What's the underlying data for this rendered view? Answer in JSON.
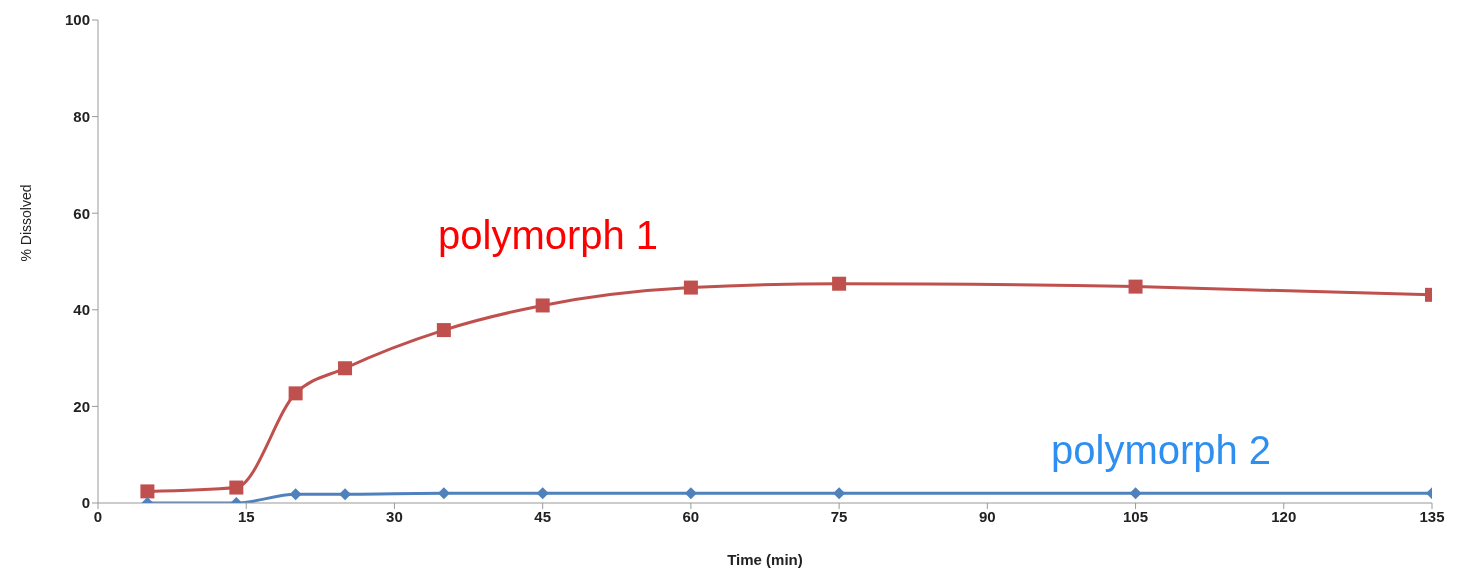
{
  "chart_data": {
    "type": "line",
    "xlabel": "Time (min)",
    "ylabel": "% Dissolved",
    "x": [
      5,
      14,
      20,
      25,
      35,
      45,
      60,
      75,
      105,
      135
    ],
    "series": [
      {
        "name": "polymorph 1",
        "color": "#c0504d",
        "marker": "square",
        "values": [
          2.4,
          3.2,
          22.7,
          27.9,
          35.8,
          40.9,
          44.6,
          45.4,
          44.8,
          43.1
        ]
      },
      {
        "name": "polymorph 2",
        "color": "#4f81bd",
        "marker": "diamond",
        "values": [
          0,
          0,
          1.8,
          1.8,
          2,
          2,
          2,
          2,
          2,
          2
        ]
      }
    ],
    "xlim": [
      0,
      135
    ],
    "xticks": [
      0,
      15,
      30,
      45,
      60,
      75,
      90,
      105,
      120,
      135
    ],
    "ylim": [
      0,
      100
    ],
    "yticks": [
      0,
      20,
      40,
      60,
      80,
      100
    ],
    "grid": false,
    "legend": false
  }
}
